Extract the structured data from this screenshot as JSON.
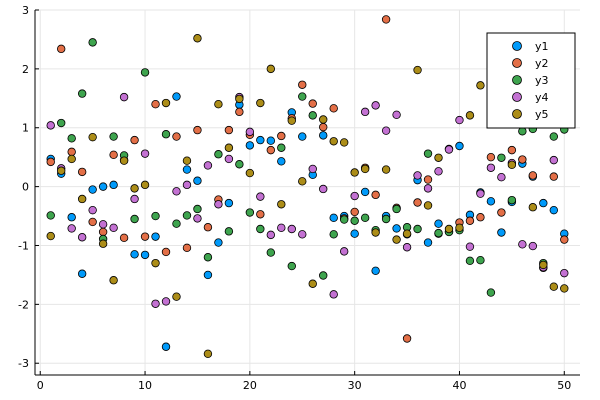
{
  "chart_data": {
    "type": "scatter",
    "title": "",
    "xlabel": "",
    "ylabel": "",
    "xlim": [
      -0.5,
      51.5
    ],
    "ylim": [
      -3.2,
      3.0
    ],
    "xticks": [
      0,
      10,
      20,
      30,
      40,
      50
    ],
    "yticks": [
      -3,
      -2,
      -1,
      0,
      1,
      2,
      3
    ],
    "grid": true,
    "legend": "top-right",
    "x": [
      1,
      2,
      3,
      4,
      5,
      6,
      7,
      8,
      9,
      10,
      11,
      12,
      13,
      14,
      15,
      16,
      17,
      18,
      19,
      20,
      21,
      22,
      23,
      24,
      25,
      26,
      27,
      28,
      29,
      30,
      31,
      32,
      33,
      34,
      35,
      36,
      37,
      38,
      39,
      40,
      41,
      42,
      43,
      44,
      45,
      46,
      47,
      48,
      49,
      50
    ],
    "series": [
      {
        "name": "y1",
        "color": "#009AFA",
        "values": [
          0.47,
          0.22,
          -0.52,
          -1.48,
          -0.05,
          0.0,
          0.03,
          0.45,
          -1.15,
          -1.16,
          -0.85,
          -2.72,
          1.53,
          0.29,
          0.1,
          -1.5,
          -0.95,
          -0.28,
          1.39,
          0.7,
          0.79,
          0.78,
          0.43,
          1.26,
          0.85,
          0.2,
          0.87,
          -0.53,
          -0.5,
          -0.8,
          -0.09,
          -1.43,
          -0.5,
          -0.71,
          -0.81,
          0.11,
          -0.95,
          -0.63,
          0.64,
          0.69,
          -0.48,
          -0.1,
          -0.25,
          -0.78,
          -0.26,
          0.39,
          0.17,
          -0.28,
          -0.4,
          -0.8
        ]
      },
      {
        "name": "y2",
        "color": "#E36F47",
        "values": [
          0.42,
          2.34,
          0.59,
          0.25,
          -0.6,
          -0.77,
          0.54,
          -0.87,
          0.79,
          -0.85,
          1.4,
          -1.11,
          0.85,
          -1.04,
          0.96,
          -0.69,
          -0.22,
          0.96,
          1.27,
          0.88,
          -0.47,
          0.62,
          0.86,
          1.16,
          1.73,
          1.41,
          1.01,
          1.33,
          -0.54,
          -0.43,
          0.32,
          -0.14,
          2.84,
          -0.36,
          -2.58,
          -0.27,
          0.12,
          -0.8,
          -0.77,
          -0.61,
          -0.58,
          -0.52,
          0.5,
          -0.44,
          0.62,
          0.46,
          0.19,
          -1.38,
          0.17,
          -0.9
        ]
      },
      {
        "name": "y3",
        "color": "#3EA44E",
        "values": [
          -0.49,
          1.08,
          0.82,
          1.58,
          2.45,
          -0.89,
          0.85,
          0.53,
          -0.55,
          1.94,
          -0.5,
          0.89,
          -0.63,
          -0.49,
          -0.38,
          -1.2,
          0.55,
          -0.76,
          0.38,
          -0.44,
          -0.72,
          -1.12,
          0.66,
          -1.35,
          1.53,
          1.21,
          -1.51,
          -0.81,
          -0.56,
          -0.58,
          -0.53,
          -0.74,
          -0.55,
          -0.38,
          -0.69,
          -0.72,
          0.56,
          -0.79,
          -0.77,
          -0.74,
          -1.26,
          -1.25,
          -1.8,
          0.49,
          -0.23,
          0.94,
          0.98,
          -1.3,
          0.85,
          0.97
        ]
      },
      {
        "name": "y4",
        "color": "#C371D2",
        "values": [
          1.04,
          0.31,
          -0.71,
          -0.86,
          -0.4,
          -0.64,
          -0.7,
          1.52,
          -0.21,
          0.56,
          -1.99,
          -1.95,
          -0.08,
          0.03,
          -0.54,
          0.36,
          -0.3,
          0.47,
          1.52,
          0.93,
          -0.17,
          -0.82,
          -0.7,
          -0.72,
          -0.81,
          0.3,
          -0.04,
          -1.83,
          -1.1,
          -0.16,
          1.27,
          1.38,
          0.95,
          1.22,
          -1.03,
          0.19,
          -0.03,
          0.26,
          0.63,
          1.13,
          -1.02,
          -0.12,
          0.32,
          0.16,
          0.4,
          -0.98,
          -1.01,
          -1.37,
          0.45,
          -1.47
        ]
      },
      {
        "name": "y5",
        "color": "#AC8D18",
        "values": [
          -0.84,
          0.27,
          0.47,
          -0.21,
          0.84,
          -0.97,
          -1.59,
          0.44,
          -0.03,
          0.03,
          -1.3,
          1.42,
          -1.87,
          0.44,
          2.52,
          -2.84,
          1.4,
          0.66,
          1.49,
          0.23,
          1.42,
          2.0,
          -0.3,
          1.12,
          0.09,
          -1.65,
          1.14,
          0.77,
          0.75,
          0.24,
          0.3,
          -0.78,
          0.29,
          -0.9,
          -0.8,
          1.98,
          -0.32,
          0.49,
          -0.72,
          -0.7,
          1.21,
          1.72,
          1.27,
          1.08,
          0.37,
          1.52,
          -0.35,
          -1.33,
          -1.7,
          -1.73
        ]
      }
    ]
  }
}
